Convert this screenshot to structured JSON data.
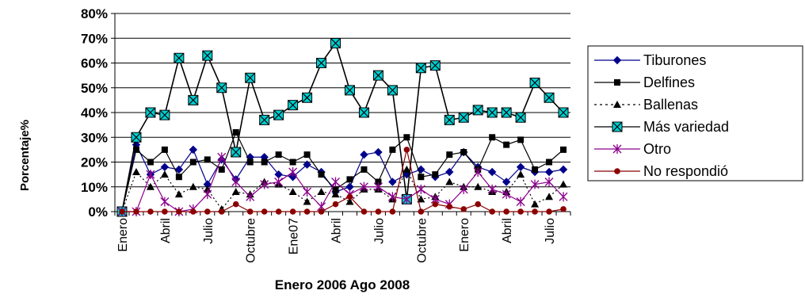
{
  "chart_data": {
    "type": "line",
    "xlabel": "Enero 2006 Ago 2008",
    "ylabel": "Porcentaje%",
    "ylim": [
      0,
      80
    ],
    "yticks": [
      "0%",
      "10%",
      "20%",
      "30%",
      "40%",
      "50%",
      "60%",
      "70%",
      "80%"
    ],
    "ytick_values": [
      0,
      10,
      20,
      30,
      40,
      50,
      60,
      70,
      80
    ],
    "xtick_labels": [
      {
        "index": 0,
        "label": "Enero"
      },
      {
        "index": 3,
        "label": "Abril"
      },
      {
        "index": 6,
        "label": "Julio"
      },
      {
        "index": 9,
        "label": "Octubre"
      },
      {
        "index": 12,
        "label": "Ene07"
      },
      {
        "index": 15,
        "label": "Abril"
      },
      {
        "index": 18,
        "label": "Julio"
      },
      {
        "index": 21,
        "label": "Octubre"
      },
      {
        "index": 24,
        "label": "Enero"
      },
      {
        "index": 27,
        "label": "Abril"
      },
      {
        "index": 30,
        "label": "Julio"
      }
    ],
    "num_points": 32,
    "grid": "horizontal",
    "legend_position": "right",
    "series": [
      {
        "name": "Tiburones",
        "color": "#00008B",
        "dash": "solid",
        "marker": "diamond",
        "values": [
          0,
          27,
          15,
          18,
          17,
          25,
          11,
          21,
          13,
          22,
          22,
          15,
          14,
          19,
          16,
          8,
          10,
          23,
          24,
          12,
          15,
          17,
          14,
          16,
          24,
          18,
          16,
          12,
          18,
          16,
          16,
          17
        ]
      },
      {
        "name": "Delfines",
        "color": "#000000",
        "dash": "solid",
        "marker": "square",
        "values": [
          0,
          25,
          20,
          25,
          14,
          20,
          21,
          17,
          32,
          20,
          20,
          23,
          20,
          23,
          15,
          9,
          13,
          17,
          12,
          25,
          30,
          14,
          15,
          23,
          24,
          17,
          30,
          27,
          29,
          17,
          20,
          25
        ]
      },
      {
        "name": "Ballenas",
        "color": "#000000",
        "dash": "dotted",
        "marker": "triangle",
        "values": [
          0,
          16,
          10,
          15,
          7,
          10,
          9,
          1,
          8,
          7,
          12,
          11,
          8,
          4,
          8,
          7,
          4,
          9,
          9,
          5,
          17,
          5,
          6,
          12,
          10,
          10,
          8,
          8,
          15,
          3,
          6,
          11
        ]
      },
      {
        "name": "Más variedad",
        "color": "#000000",
        "dash": "solid",
        "marker": "boxx",
        "values": [
          0,
          30,
          40,
          39,
          62,
          45,
          63,
          50,
          24,
          54,
          37,
          39,
          43,
          46,
          60,
          68,
          49,
          40,
          55,
          49,
          5,
          58,
          59,
          37,
          38,
          41,
          40,
          40,
          38,
          52,
          46,
          40
        ]
      },
      {
        "name": "Otro",
        "color": "#8B008B",
        "dash": "solid",
        "marker": "star",
        "values": [
          0,
          0,
          15,
          4,
          0,
          1,
          7,
          22,
          12,
          6,
          11,
          12,
          16,
          8,
          2,
          12,
          7,
          10,
          10,
          6,
          5,
          9,
          5,
          3,
          9,
          16,
          9,
          7,
          4,
          11,
          12,
          6
        ]
      },
      {
        "name": "No respondió",
        "color": "#8B0000",
        "dash": "solid",
        "marker": "circle",
        "values": [
          0,
          0,
          0,
          0,
          0,
          0,
          0,
          0,
          3,
          0,
          0,
          0,
          0,
          0,
          0,
          3,
          6,
          0,
          0,
          0,
          25,
          0,
          3,
          2,
          1,
          3,
          0,
          0,
          0,
          0,
          0,
          1
        ]
      }
    ]
  }
}
